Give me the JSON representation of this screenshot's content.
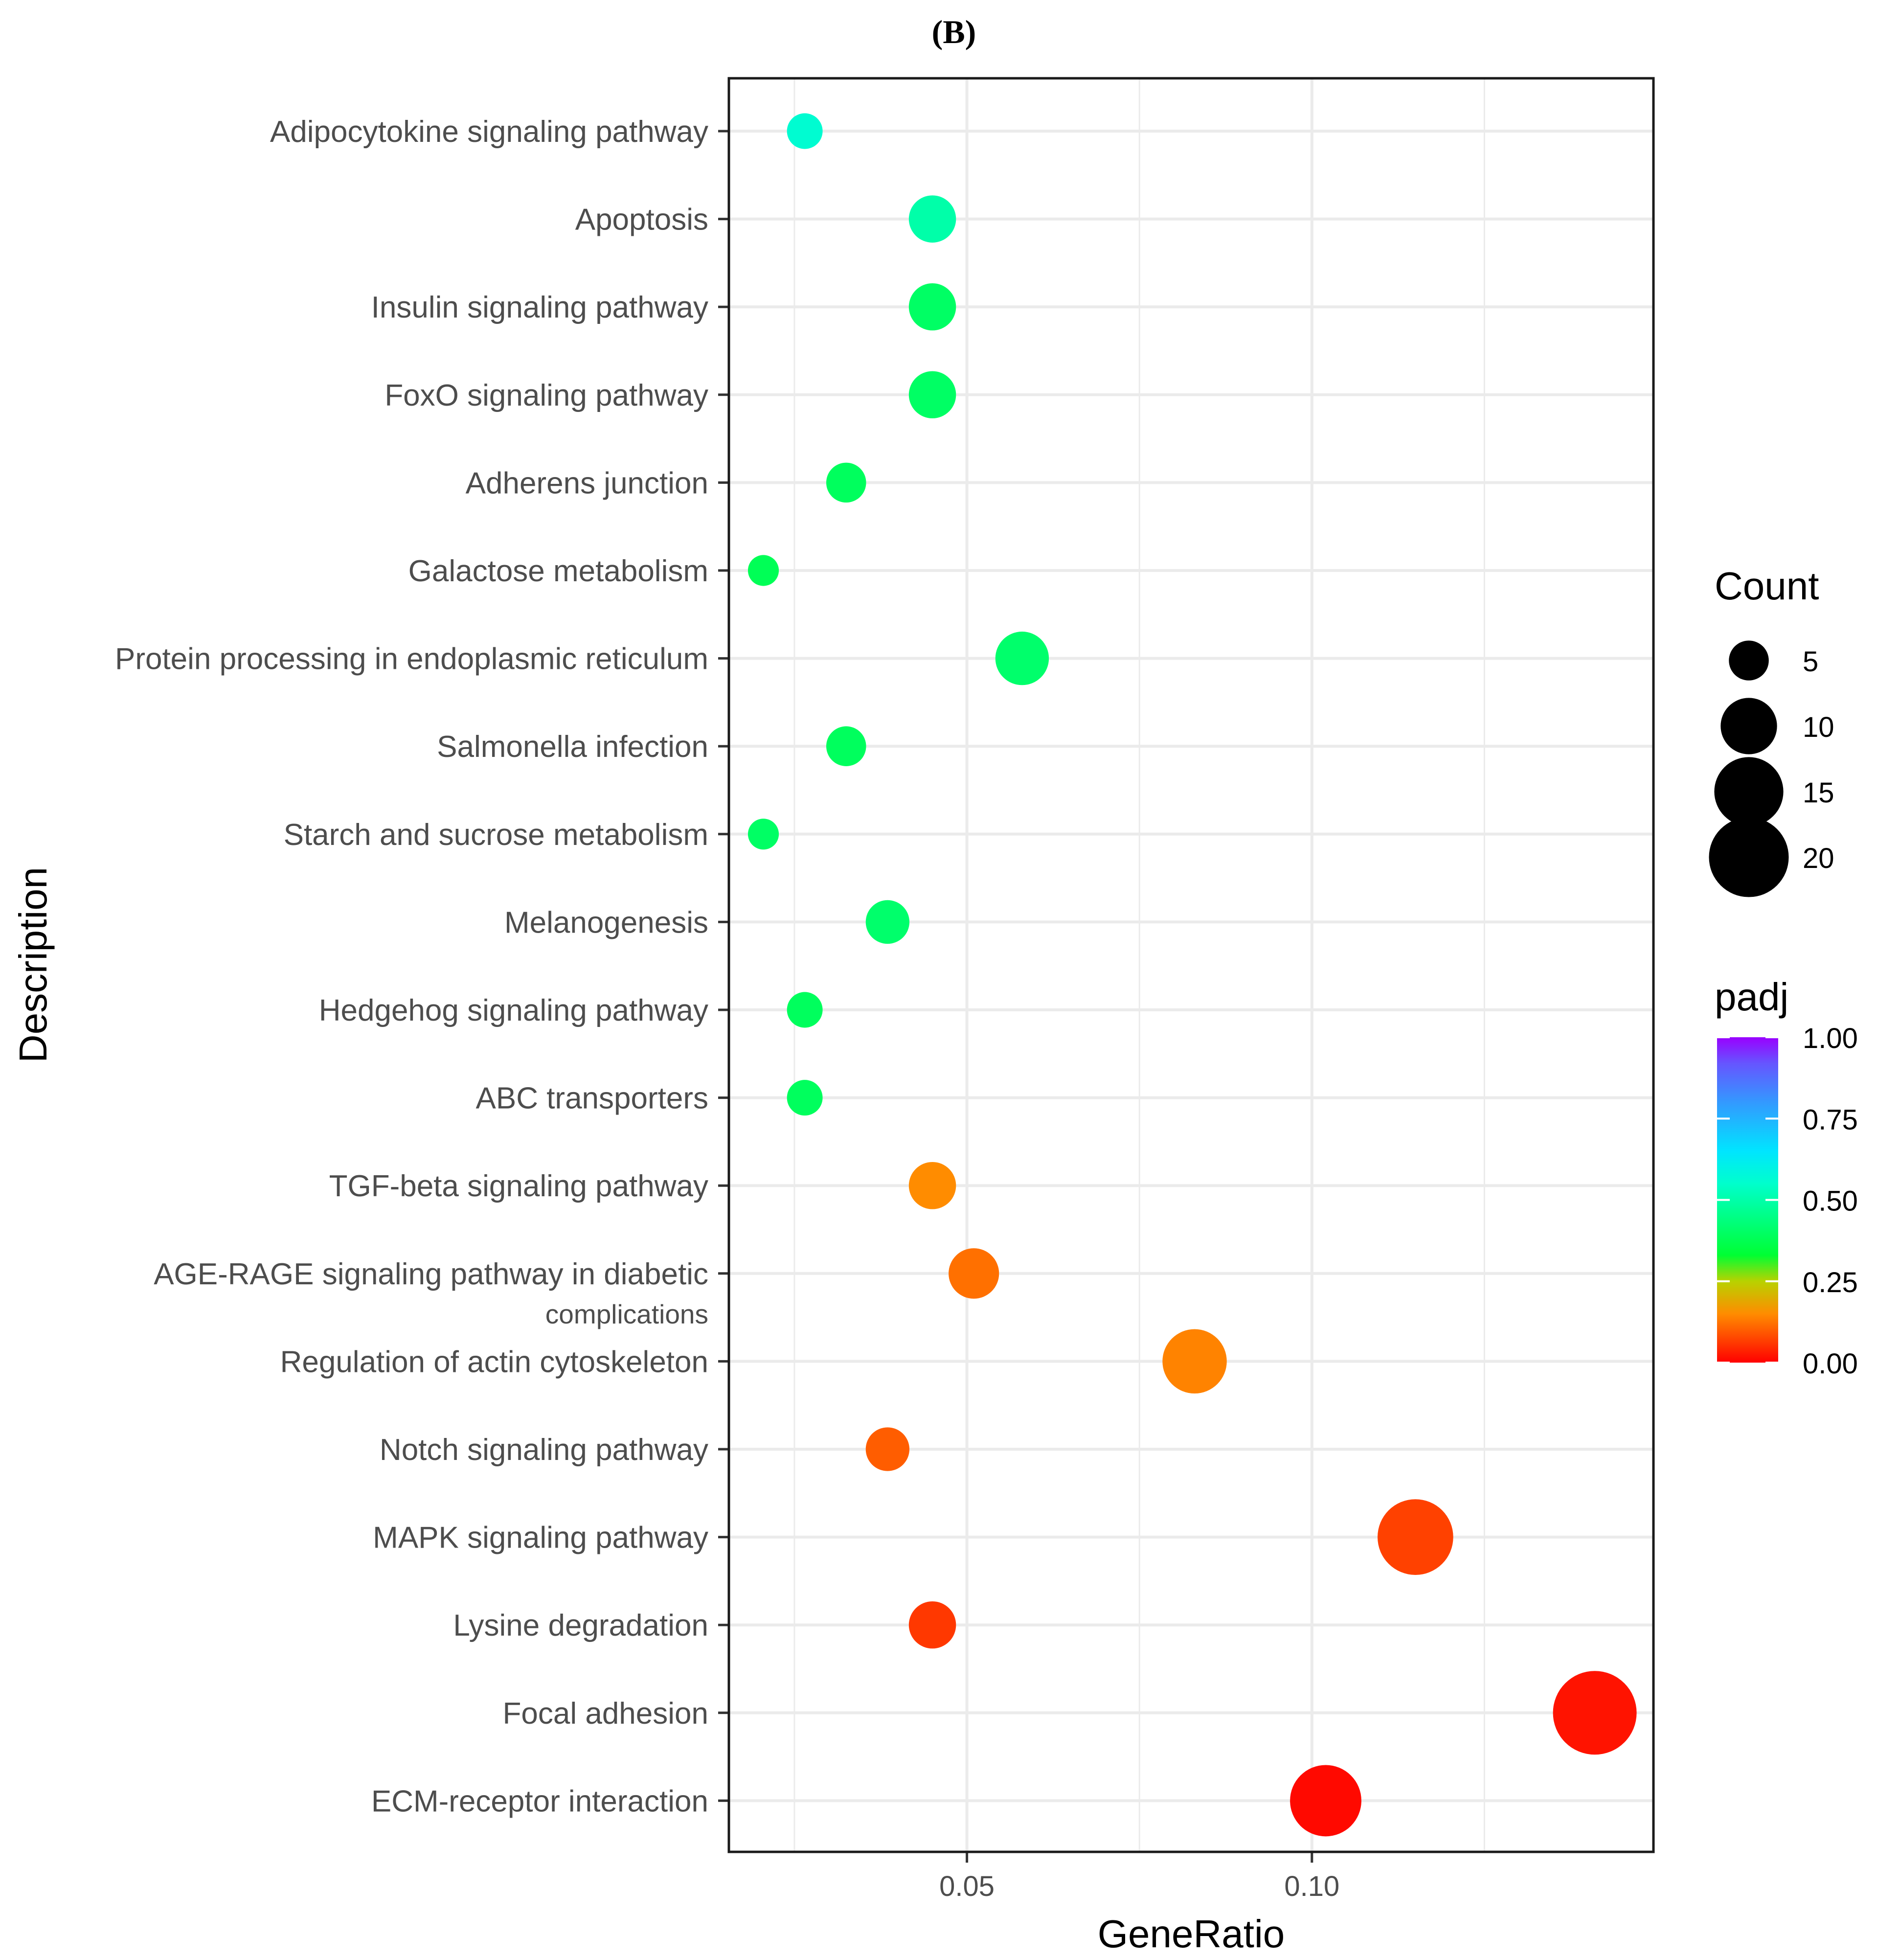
{
  "chart_data": {
    "type": "scatter",
    "panel_label": "(B)",
    "xlabel": "GeneRatio",
    "ylabel": "Description",
    "xlim": [
      0.0155,
      0.1495
    ],
    "xticks": [
      {
        "value": 0.05,
        "label": "0.05"
      },
      {
        "value": 0.1,
        "label": "0.10"
      }
    ],
    "x_minor_gridlines": [
      0.075,
      0.125,
      0.025
    ],
    "grid": true,
    "categories": [
      {
        "label": "Adipocytokine signaling pathway",
        "gene_ratio": 0.0265,
        "count": 4,
        "padj": 0.56
      },
      {
        "label": "Apoptosis",
        "gene_ratio": 0.045,
        "count": 7,
        "padj": 0.5
      },
      {
        "label": "Insulin signaling pathway",
        "gene_ratio": 0.045,
        "count": 7,
        "padj": 0.4
      },
      {
        "label": "FoxO signaling pathway",
        "gene_ratio": 0.045,
        "count": 7,
        "padj": 0.4
      },
      {
        "label": "Adherens junction",
        "gene_ratio": 0.0325,
        "count": 5,
        "padj": 0.39
      },
      {
        "label": "Galactose metabolism",
        "gene_ratio": 0.0205,
        "count": 3,
        "padj": 0.38
      },
      {
        "label": "Protein processing in endoplasmic reticulum",
        "gene_ratio": 0.058,
        "count": 9,
        "padj": 0.41
      },
      {
        "label": "Salmonella infection",
        "gene_ratio": 0.0325,
        "count": 5,
        "padj": 0.39
      },
      {
        "label": "Starch and sucrose metabolism",
        "gene_ratio": 0.0205,
        "count": 3,
        "padj": 0.4
      },
      {
        "label": "Melanogenesis",
        "gene_ratio": 0.0385,
        "count": 6,
        "padj": 0.41
      },
      {
        "label": "Hedgehog signaling pathway",
        "gene_ratio": 0.0265,
        "count": 4,
        "padj": 0.39
      },
      {
        "label": "ABC transporters",
        "gene_ratio": 0.0265,
        "count": 4,
        "padj": 0.39
      },
      {
        "label": "TGF-beta signaling pathway",
        "gene_ratio": 0.045,
        "count": 7,
        "padj": 0.15
      },
      {
        "label": "AGE-RAGE signaling pathway in diabetic complications",
        "line1": "AGE-RAGE signaling pathway in diabetic",
        "line2": "complications",
        "gene_ratio": 0.051,
        "count": 8,
        "padj": 0.12
      },
      {
        "label": "Regulation of actin cytoskeleton",
        "gene_ratio": 0.083,
        "count": 13,
        "padj": 0.14
      },
      {
        "label": "Notch signaling pathway",
        "gene_ratio": 0.0385,
        "count": 6,
        "padj": 0.1
      },
      {
        "label": "MAPK signaling pathway",
        "gene_ratio": 0.115,
        "count": 18,
        "padj": 0.07
      },
      {
        "label": "Lysine degradation",
        "gene_ratio": 0.045,
        "count": 7,
        "padj": 0.06
      },
      {
        "label": "Focal adhesion",
        "gene_ratio": 0.141,
        "count": 22,
        "padj": 0.02
      },
      {
        "label": "ECM-receptor interaction",
        "gene_ratio": 0.102,
        "count": 16,
        "padj": 0.01
      }
    ],
    "legend_size": {
      "title": "Count",
      "entries": [
        {
          "value": 5,
          "label": "5"
        },
        {
          "value": 10,
          "label": "10"
        },
        {
          "value": 15,
          "label": "15"
        },
        {
          "value": 20,
          "label": "20"
        }
      ]
    },
    "legend_color": {
      "title": "padj",
      "range": [
        0,
        1
      ],
      "ticks": [
        {
          "value": 1.0,
          "label": "1.00"
        },
        {
          "value": 0.75,
          "label": "0.75"
        },
        {
          "value": 0.5,
          "label": "0.50"
        },
        {
          "value": 0.25,
          "label": "0.25"
        },
        {
          "value": 0.0,
          "label": "0.00"
        }
      ],
      "gradient": [
        {
          "value": 0.0,
          "color": "#FF0000"
        },
        {
          "value": 0.15,
          "color": "#FF8C00"
        },
        {
          "value": 0.25,
          "color": "#B8D200"
        },
        {
          "value": 0.33,
          "color": "#00FF33"
        },
        {
          "value": 0.55,
          "color": "#00FFCC"
        },
        {
          "value": 0.65,
          "color": "#00E5FF"
        },
        {
          "value": 0.8,
          "color": "#3399FF"
        },
        {
          "value": 0.92,
          "color": "#6655FF"
        },
        {
          "value": 1.0,
          "color": "#9900FF"
        }
      ]
    },
    "colors": {
      "grid": "#EBEBEB",
      "panel_border": "#1A1A1A",
      "axis_text": "#4D4D4D",
      "title_text": "#000000"
    }
  }
}
